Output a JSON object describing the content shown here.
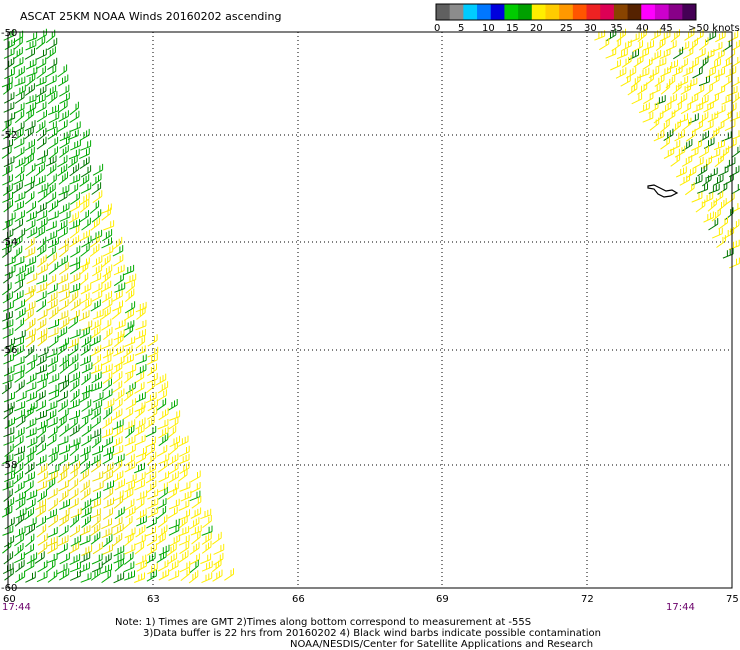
{
  "title": "ASCAT 25KM NOAA Winds 20160202 ascending",
  "legend": {
    "labels": [
      "0",
      "5",
      "10",
      "15",
      "20",
      "25",
      "30",
      "35",
      "40",
      "45",
      ">50 knots"
    ],
    "colors": [
      "#606060",
      "#8c8c8c",
      "#00ccff",
      "#0077ff",
      "#0000dd",
      "#00cc00",
      "#00a000",
      "#ffee00",
      "#ffcc00",
      "#ff9900",
      "#ff5500",
      "#ee2222",
      "#dd0055",
      "#884400",
      "#552200",
      "#ff00ff",
      "#cc00cc",
      "#880088",
      "#440055"
    ]
  },
  "axes": {
    "lon_labels": [
      "60",
      "63",
      "66",
      "69",
      "72",
      "75"
    ],
    "lat_labels": [
      "-50",
      "-52",
      "-54",
      "-56",
      "-58",
      "-60"
    ]
  },
  "times": {
    "left": "17:44",
    "right": "17:44"
  },
  "notes": {
    "line1": "Note: 1) Times are GMT 2)Times along bottom correspond to measurement at -55S",
    "line2": "3)Data buffer is 22 hrs from 20160202 4) Black wind barbs indicate possible contamination",
    "line3": "NOAA/NESDIS/Center for Satellite Applications and Research"
  },
  "swaths": [
    {
      "side": "west",
      "colors_knots": [
        "15-20 green",
        "20-25 yellow"
      ]
    },
    {
      "side": "east",
      "colors_knots": [
        "20-25 yellow",
        "15-20 green"
      ]
    }
  ],
  "colors": {
    "green": "#00aa00",
    "darkgreen": "#007700",
    "yellow": "#ffee00",
    "yellow2": "#eedd00"
  }
}
